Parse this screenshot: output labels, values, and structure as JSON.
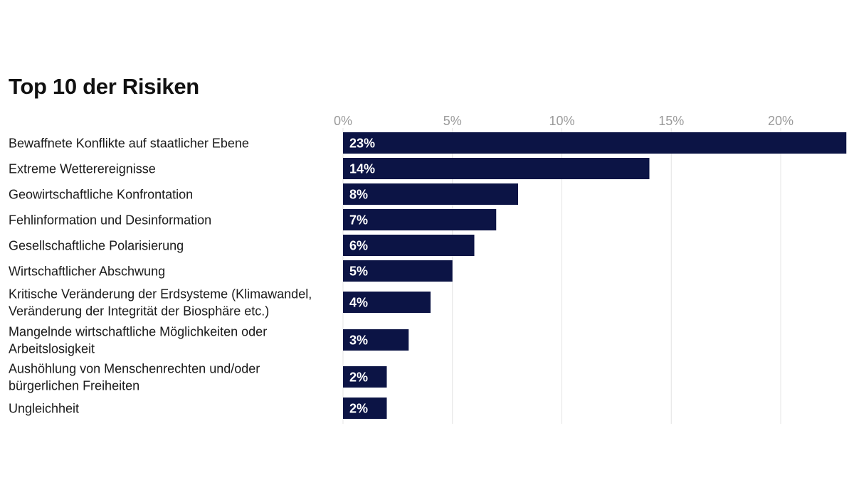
{
  "chart_data": {
    "type": "bar",
    "orientation": "horizontal",
    "title": "Top 10 der Risiken",
    "categories": [
      [
        "Bewaffnete Konflikte auf staatlicher Ebene"
      ],
      [
        "Extreme Wetterereignisse"
      ],
      [
        "Geowirtschaftliche Konfrontation"
      ],
      [
        "Fehlinformation und Desinformation"
      ],
      [
        "Gesellschaftliche Polarisierung"
      ],
      [
        "Wirtschaftlicher Abschwung"
      ],
      [
        "Kritische Veränderung der Erdsysteme (Klimawandel,",
        "Veränderung der Integrität der Biosphäre etc.)"
      ],
      [
        "Mangelnde wirtschaftliche Möglichkeiten oder",
        "Arbeitslosigkeit"
      ],
      [
        "Aushöhlung von Menschenrechten und/oder",
        "bürgerlichen Freiheiten"
      ],
      [
        "Ungleichheit"
      ]
    ],
    "values": [
      23,
      14,
      8,
      7,
      6,
      5,
      4,
      3,
      2,
      2
    ],
    "value_labels": [
      "23%",
      "14%",
      "8%",
      "7%",
      "6%",
      "5%",
      "4%",
      "3%",
      "2%",
      "2%"
    ],
    "xticks": [
      0,
      5,
      10,
      15,
      20
    ],
    "xtick_labels": [
      "0%",
      "5%",
      "10%",
      "15%",
      "20%"
    ],
    "xlim": [
      0,
      23
    ],
    "xlabel": "",
    "ylabel": "",
    "grid": true,
    "axis_position": "top",
    "bar_color": "#0c1445",
    "gridline_color": "#e4e4e4",
    "tick_color": "#9a9a9a",
    "text_color": "#1a1a1a"
  }
}
